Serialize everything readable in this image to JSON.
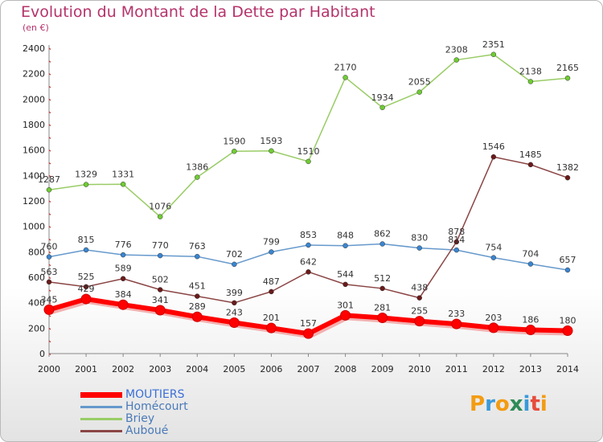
{
  "title": "Evolution du Montant de la Dette par Habitant",
  "subtitle": "(en €)",
  "logo": {
    "text": "Proxiti",
    "colors": [
      "#f39c12",
      "#3a9ad9",
      "#f39c12",
      "#2e8b57",
      "#3a9ad9",
      "#e74c3c",
      "#f39c12"
    ]
  },
  "chart_data": {
    "type": "line",
    "title": "Evolution du Montant de la Dette par Habitant",
    "ylabel": "(en €)",
    "x": [
      "2000",
      "2001",
      "2002",
      "2003",
      "2004",
      "2005",
      "2006",
      "2007",
      "2008",
      "2009",
      "2010",
      "2011",
      "2012",
      "2013",
      "2014"
    ],
    "ylim": [
      0,
      2400
    ],
    "yticks": [
      0,
      200,
      400,
      600,
      800,
      1000,
      1200,
      1400,
      1600,
      1800,
      2000,
      2200,
      2400
    ],
    "grid": false,
    "legend": "bottom-left",
    "series": [
      {
        "name": "MOUTIERS",
        "color": "#ff0000",
        "marker": "#ff0000",
        "width": 6,
        "values": [
          345,
          429,
          384,
          341,
          289,
          243,
          201,
          157,
          301,
          281,
          255,
          233,
          203,
          186,
          180
        ]
      },
      {
        "name": "Homécourt",
        "color": "#6699cc",
        "marker": "#3a85d0",
        "width": 1.5,
        "values": [
          760,
          815,
          776,
          770,
          763,
          702,
          799,
          853,
          848,
          862,
          830,
          814,
          754,
          704,
          657
        ]
      },
      {
        "name": "Briey",
        "color": "#99cc66",
        "marker": "#6fcc33",
        "width": 1.5,
        "values": [
          1287,
          1329,
          1331,
          1076,
          1386,
          1590,
          1593,
          1510,
          2170,
          1934,
          2055,
          2308,
          2351,
          2138,
          2165
        ]
      },
      {
        "name": "Auboué",
        "color": "#8b4545",
        "marker": "#6b1a1a",
        "width": 1.5,
        "values": [
          563,
          525,
          589,
          502,
          451,
          399,
          487,
          642,
          544,
          512,
          438,
          878,
          1546,
          1485,
          1382
        ]
      }
    ],
    "labels": {
      "MOUTIERS": [
        "345",
        "429",
        "384",
        "341",
        "289",
        "243",
        "201",
        "157",
        "301",
        "281",
        "255",
        "233",
        "203",
        "186",
        "180"
      ],
      "Homécourt": [
        "760",
        "815",
        "776",
        "770",
        "763",
        "702",
        "799",
        "853",
        "848",
        "862",
        "830",
        "814",
        "754",
        "704",
        "657"
      ],
      "Briey": [
        "1287",
        "1329",
        "1331",
        "1076",
        "1386",
        "1590",
        "1593",
        "1510",
        "2170",
        "1934",
        "2055",
        "2308",
        "2351",
        "2138",
        "2165"
      ],
      "Auboué": [
        "563",
        "525",
        "589",
        "502",
        "451",
        "399",
        "487",
        "642",
        "544",
        "512",
        "438",
        "878",
        "1546",
        "1485",
        "1382"
      ]
    }
  }
}
